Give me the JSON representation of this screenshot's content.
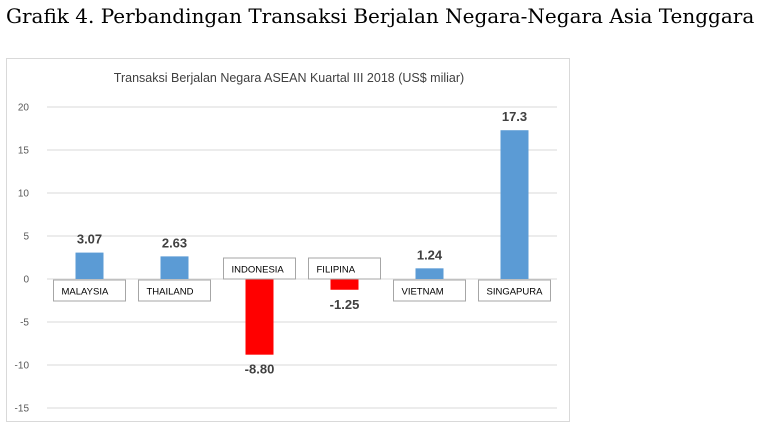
{
  "heading": "Grafik 4. Perbandingan Transaksi Berjalan Negara-Negara Asia Tenggara",
  "chart_data": {
    "type": "bar",
    "title": "Transaksi Berjalan Negara ASEAN Kuartal III 2018 (US$ miliar)",
    "categories": [
      "MALAYSIA",
      "THAILAND",
      "INDONESIA",
      "FILIPINA",
      "VIETNAM",
      "SINGAPURA"
    ],
    "values": [
      3.07,
      2.63,
      -8.8,
      -1.25,
      1.24,
      17.3
    ],
    "data_labels": [
      "3.07",
      "2.63",
      "-8.80",
      "-1.25",
      "1.24",
      "17.3"
    ],
    "yticks": [
      "20",
      "15",
      "10",
      "5",
      "0",
      "-5",
      "-10",
      "-15"
    ],
    "ylim": [
      -15,
      20
    ],
    "grid": true,
    "colors": {
      "positive": "#5b9bd5",
      "negative": "#ff0000",
      "grid": "#d9d9d9"
    }
  }
}
